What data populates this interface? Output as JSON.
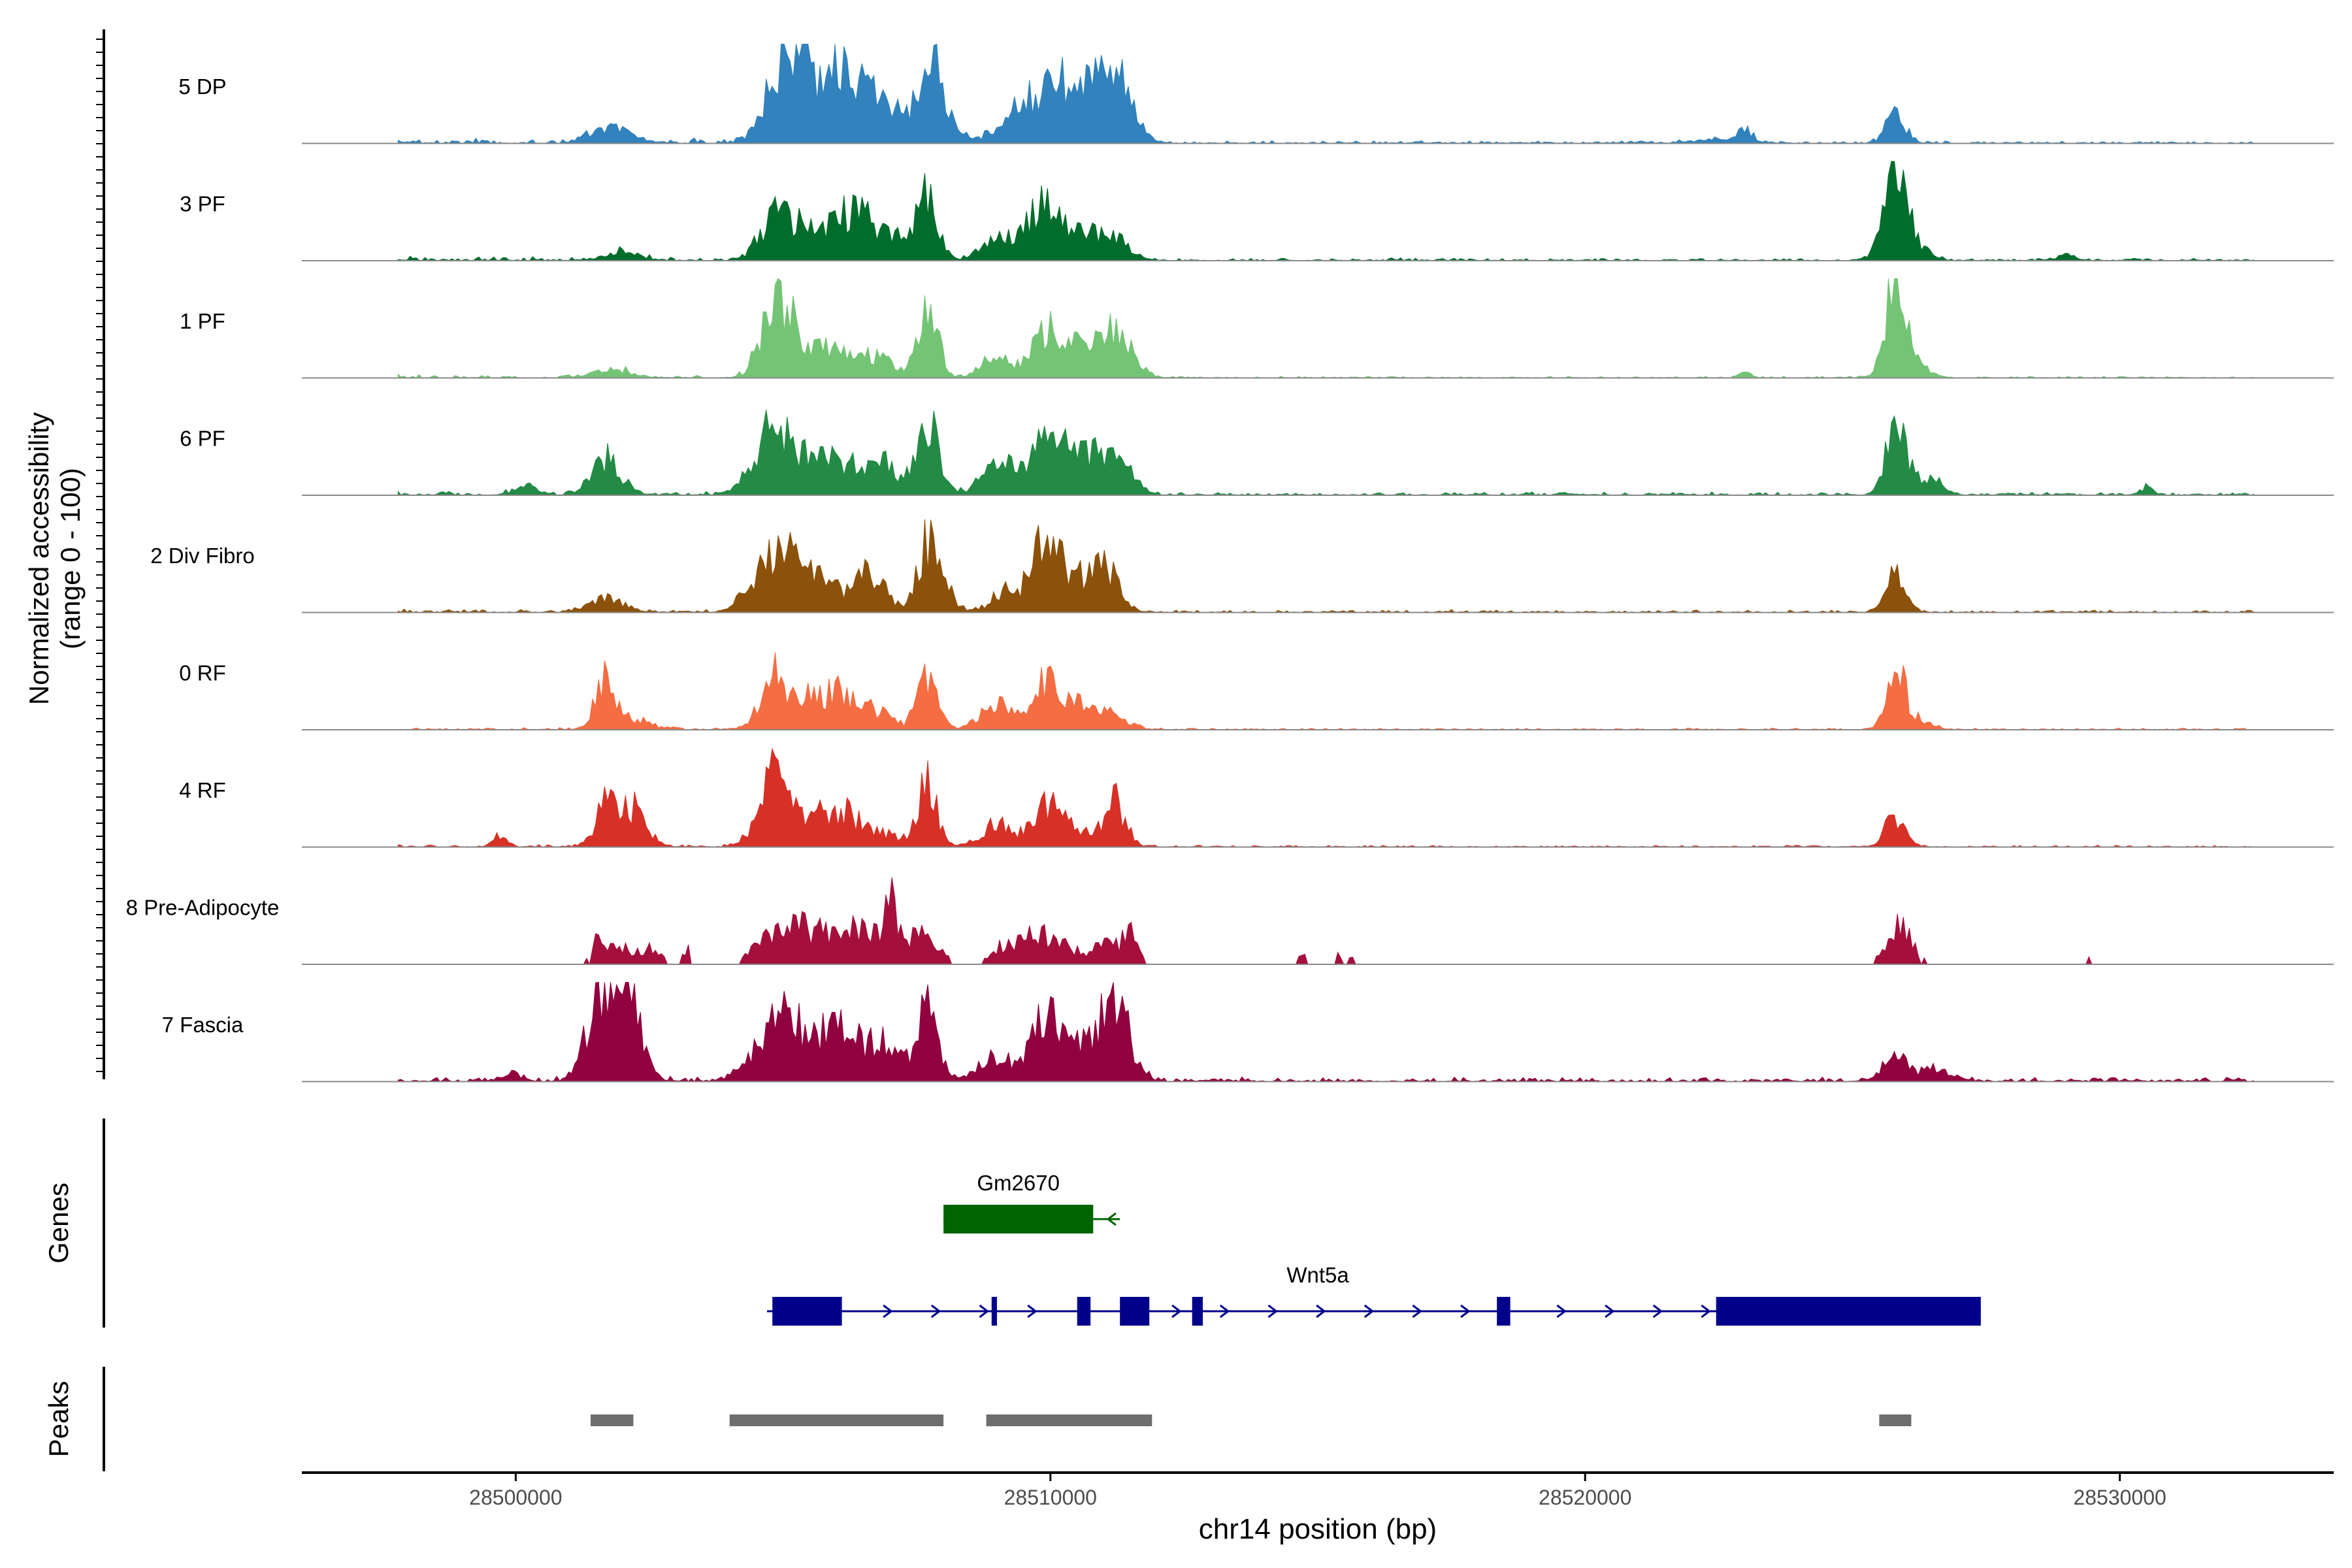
{
  "chart_data": {
    "type": "area",
    "chromosome": "chr14",
    "xlabel": "chr14 position (bp)",
    "ylabel_line1": "Normalized accessibility",
    "ylabel_line2": "(range 0 - 100)",
    "xlim": [
      28496000,
      28534000
    ],
    "ylim": [
      0,
      100
    ],
    "x_ticks": [
      28500000,
      28510000,
      28520000,
      28530000
    ],
    "x_tick_labels": [
      "28500000",
      "28510000",
      "28520000",
      "28530000"
    ],
    "region": [
      28497800,
      28532500
    ],
    "tracks": [
      {
        "name": "5 DP",
        "color": "#3182BD",
        "peaks": [
          [
            28501800,
            14,
            350
          ],
          [
            28504900,
            55,
            300
          ],
          [
            28505300,
            70,
            250
          ],
          [
            28505900,
            60,
            250
          ],
          [
            28506400,
            45,
            300
          ],
          [
            28507000,
            30,
            300
          ],
          [
            28507700,
            72,
            200
          ],
          [
            28508000,
            30,
            250
          ],
          [
            28509300,
            25,
            300
          ],
          [
            28509900,
            45,
            300
          ],
          [
            28510500,
            50,
            350
          ],
          [
            28511100,
            48,
            250
          ],
          [
            28511400,
            30,
            250
          ],
          [
            28523000,
            14,
            120
          ],
          [
            28525800,
            30,
            180
          ],
          [
            28522500,
            4,
            400
          ]
        ],
        "noise_left": 6,
        "noise_right": 3,
        "sparse": false
      },
      {
        "name": "3 PF",
        "color": "#006D2C",
        "peaks": [
          [
            28502000,
            8,
            300
          ],
          [
            28504800,
            40,
            250
          ],
          [
            28505300,
            30,
            250
          ],
          [
            28506000,
            34,
            300
          ],
          [
            28506500,
            38,
            250
          ],
          [
            28507100,
            25,
            250
          ],
          [
            28507700,
            58,
            200
          ],
          [
            28509000,
            20,
            300
          ],
          [
            28509800,
            48,
            300
          ],
          [
            28510400,
            28,
            300
          ],
          [
            28511100,
            26,
            300
          ],
          [
            28525800,
            55,
            180
          ],
          [
            28525900,
            35,
            300
          ],
          [
            28529000,
            6,
            150
          ]
        ],
        "noise_left": 5,
        "noise_right": 3,
        "sparse": false
      },
      {
        "name": "1 PF",
        "color": "#74C476",
        "peaks": [
          [
            28501800,
            8,
            350
          ],
          [
            28504800,
            60,
            250
          ],
          [
            28505100,
            40,
            200
          ],
          [
            28505800,
            30,
            350
          ],
          [
            28506700,
            22,
            300
          ],
          [
            28507700,
            75,
            180
          ],
          [
            28509000,
            18,
            300
          ],
          [
            28509900,
            45,
            250
          ],
          [
            28510500,
            26,
            300
          ],
          [
            28511200,
            48,
            300
          ],
          [
            28523000,
            6,
            100
          ],
          [
            28525800,
            78,
            180
          ],
          [
            28526000,
            20,
            300
          ]
        ],
        "noise_left": 4,
        "noise_right": 2,
        "sparse": false
      },
      {
        "name": "6 PF",
        "color": "#238B45",
        "peaks": [
          [
            28500200,
            8,
            200
          ],
          [
            28501700,
            36,
            250
          ],
          [
            28504500,
            30,
            250
          ],
          [
            28504900,
            50,
            250
          ],
          [
            28505500,
            35,
            300
          ],
          [
            28506200,
            30,
            300
          ],
          [
            28506900,
            30,
            250
          ],
          [
            28507700,
            72,
            200
          ],
          [
            28509000,
            28,
            300
          ],
          [
            28509800,
            45,
            300
          ],
          [
            28510300,
            35,
            300
          ],
          [
            28510900,
            35,
            250
          ],
          [
            28511300,
            30,
            250
          ],
          [
            28525800,
            70,
            180
          ],
          [
            28526300,
            14,
            250
          ],
          [
            28526600,
            8,
            150
          ],
          [
            28530500,
            8,
            120
          ]
        ],
        "noise_left": 6,
        "noise_right": 4,
        "sparse": false
      },
      {
        "name": "2 Div Fibro",
        "color": "#8C510A",
        "peaks": [
          [
            28501700,
            14,
            300
          ],
          [
            28504600,
            40,
            300
          ],
          [
            28505100,
            45,
            250
          ],
          [
            28505700,
            32,
            300
          ],
          [
            28506600,
            38,
            300
          ],
          [
            28507700,
            62,
            200
          ],
          [
            28508000,
            20,
            200
          ],
          [
            28509200,
            20,
            300
          ],
          [
            28509900,
            62,
            250
          ],
          [
            28510400,
            30,
            300
          ],
          [
            28511000,
            44,
            250
          ],
          [
            28525800,
            36,
            180
          ]
        ],
        "noise_left": 4,
        "noise_right": 3,
        "sparse": false
      },
      {
        "name": "0 RF",
        "color": "#F46D43",
        "peaks": [
          [
            28501700,
            50,
            200
          ],
          [
            28502300,
            10,
            250
          ],
          [
            28504800,
            45,
            250
          ],
          [
            28505300,
            28,
            300
          ],
          [
            28506000,
            35,
            300
          ],
          [
            28506700,
            18,
            300
          ],
          [
            28507700,
            60,
            180
          ],
          [
            28509000,
            25,
            300
          ],
          [
            28509900,
            42,
            250
          ],
          [
            28510400,
            22,
            300
          ],
          [
            28511100,
            18,
            300
          ],
          [
            28525800,
            55,
            180
          ],
          [
            28526200,
            10,
            250
          ]
        ],
        "noise_left": 3,
        "noise_right": 2,
        "sparse": false
      },
      {
        "name": "4 RF",
        "color": "#D73027",
        "peaks": [
          [
            28499700,
            12,
            120
          ],
          [
            28501700,
            42,
            200
          ],
          [
            28502200,
            38,
            250
          ],
          [
            28504600,
            25,
            250
          ],
          [
            28504900,
            58,
            200
          ],
          [
            28505500,
            30,
            300
          ],
          [
            28506200,
            30,
            300
          ],
          [
            28506900,
            12,
            300
          ],
          [
            28507700,
            60,
            180
          ],
          [
            28509000,
            22,
            300
          ],
          [
            28509900,
            40,
            250
          ],
          [
            28510400,
            20,
            300
          ],
          [
            28511200,
            45,
            200
          ],
          [
            28525800,
            32,
            180
          ]
        ],
        "noise_left": 3,
        "noise_right": 2,
        "sparse": false
      },
      {
        "name": "8 Pre-Adipocyte",
        "color": "#A50F3C",
        "peaks": [
          [
            28501500,
            15,
            60
          ],
          [
            28501800,
            20,
            300
          ],
          [
            28502500,
            15,
            200
          ],
          [
            28503200,
            15,
            80
          ],
          [
            28504500,
            12,
            200
          ],
          [
            28505000,
            38,
            250
          ],
          [
            28505600,
            32,
            300
          ],
          [
            28506200,
            28,
            250
          ],
          [
            28506800,
            35,
            300
          ],
          [
            28507000,
            40,
            80
          ],
          [
            28507600,
            30,
            300
          ],
          [
            28509100,
            18,
            200
          ],
          [
            28509700,
            35,
            250
          ],
          [
            28510300,
            18,
            200
          ],
          [
            28511000,
            20,
            250
          ],
          [
            28511500,
            28,
            150
          ],
          [
            28514700,
            10,
            80
          ],
          [
            28515400,
            10,
            60
          ],
          [
            28515600,
            8,
            60
          ],
          [
            28525600,
            12,
            150
          ],
          [
            28525900,
            38,
            150
          ],
          [
            28526200,
            10,
            150
          ],
          [
            28529400,
            12,
            60
          ]
        ],
        "noise_left": 0,
        "noise_right": 0,
        "sparse": true
      },
      {
        "name": "7 Fascia",
        "color": "#91003F",
        "peaks": [
          [
            28499900,
            8,
            200
          ],
          [
            28501600,
            88,
            250
          ],
          [
            28502100,
            80,
            250
          ],
          [
            28504500,
            20,
            300
          ],
          [
            28504900,
            48,
            250
          ],
          [
            28505300,
            40,
            250
          ],
          [
            28505900,
            42,
            300
          ],
          [
            28506300,
            22,
            300
          ],
          [
            28506900,
            35,
            300
          ],
          [
            28507700,
            70,
            200
          ],
          [
            28509000,
            25,
            300
          ],
          [
            28509900,
            62,
            250
          ],
          [
            28510500,
            26,
            300
          ],
          [
            28511000,
            40,
            250
          ],
          [
            28511300,
            55,
            250
          ],
          [
            28525800,
            32,
            180
          ],
          [
            28526500,
            12,
            300
          ]
        ],
        "noise_left": 6,
        "noise_right": 5,
        "sparse": false
      }
    ],
    "genes_label": "Genes",
    "peaks_label": "Peaks",
    "genes": [
      {
        "name": "Gm2670",
        "color": "#006400",
        "strand": "-",
        "start": 28508000,
        "end": 28511300,
        "exons": [
          [
            28508000,
            28510800
          ]
        ]
      },
      {
        "name": "Wnt5a",
        "color": "#00008B",
        "strand": "+",
        "start": 28504700,
        "end": 28527400,
        "exons": [
          [
            28504800,
            28506100
          ],
          [
            28508900,
            28509000
          ],
          [
            28510500,
            28510750
          ],
          [
            28511300,
            28511850
          ],
          [
            28512650,
            28512850
          ],
          [
            28518350,
            28518600
          ],
          [
            28522450,
            28527400
          ]
        ]
      }
    ],
    "peak_regions": [
      [
        28501400,
        28502200
      ],
      [
        28504000,
        28508000
      ],
      [
        28508800,
        28511900
      ],
      [
        28525500,
        28526100
      ]
    ]
  }
}
